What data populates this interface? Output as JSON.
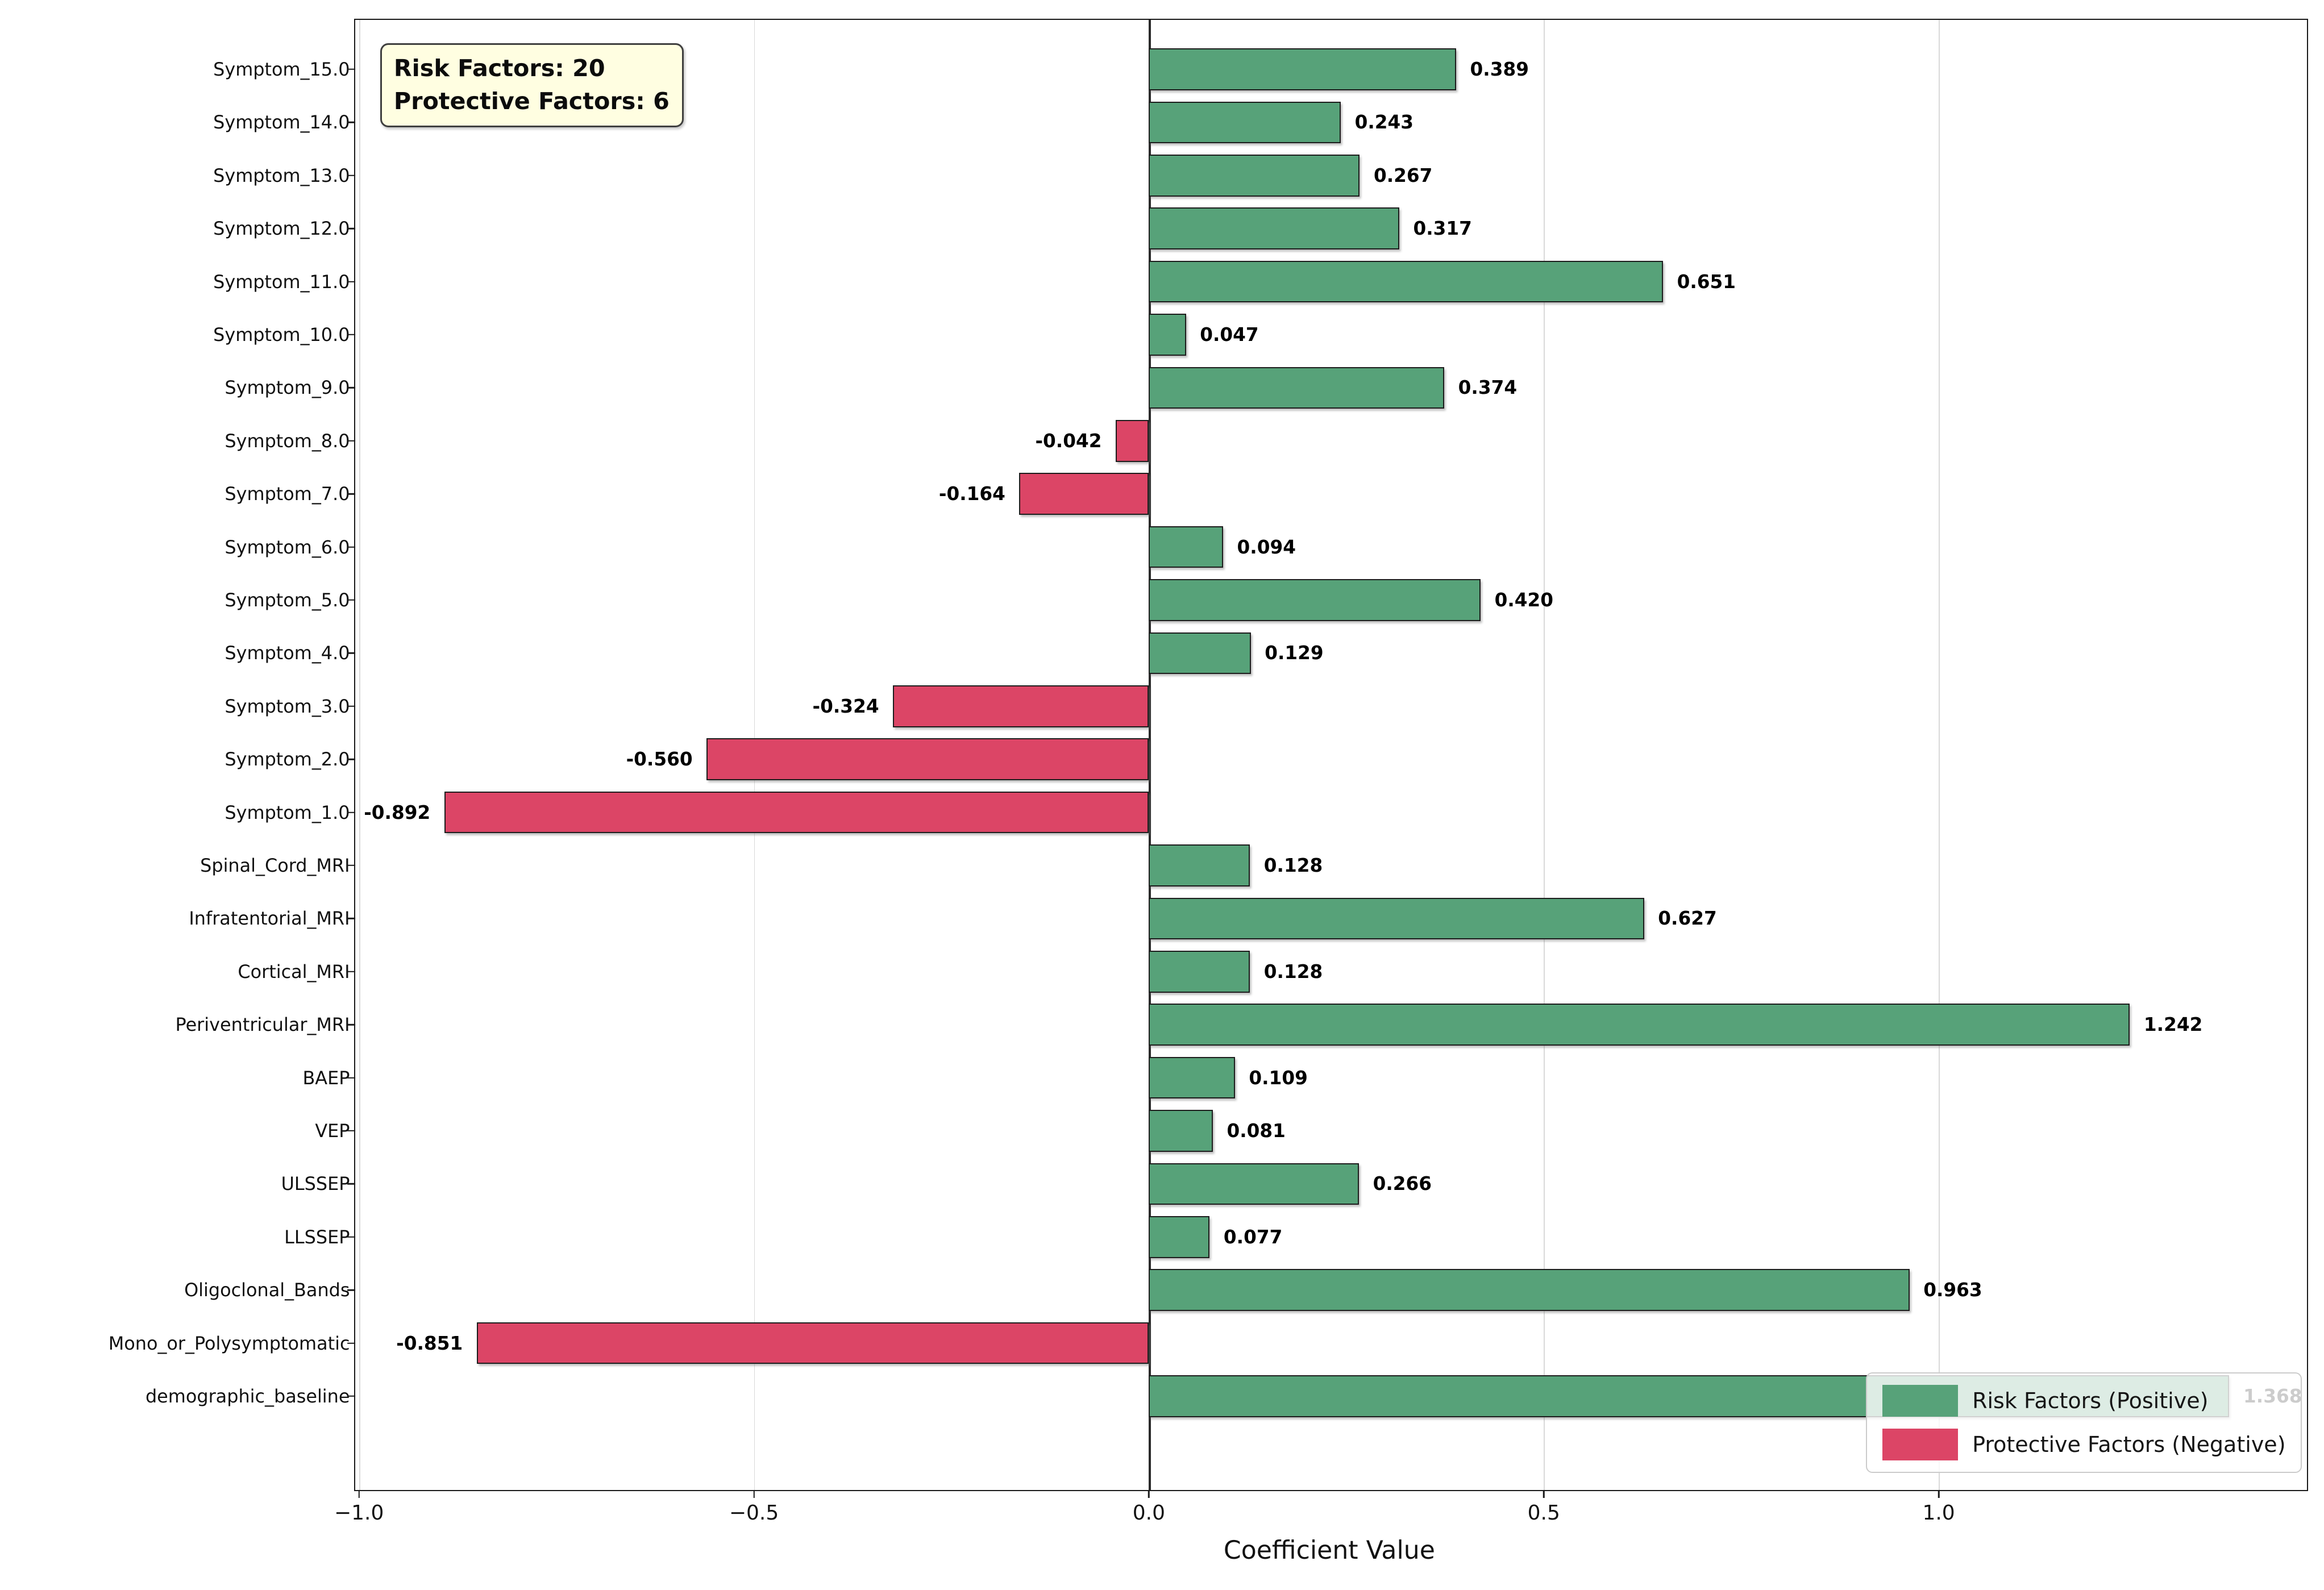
{
  "chart_data": {
    "type": "bar",
    "orientation": "horizontal",
    "title": "",
    "xlabel": "Coefficient Value",
    "ylabel": "",
    "xlim": [
      -1.005,
      1.466
    ],
    "grid": true,
    "legend_position": "lower right",
    "annotation": {
      "line1": "Risk Factors: 20",
      "line2": "Protective Factors: 6"
    },
    "counts": {
      "risk_factors": 20,
      "protective_factors": 6
    },
    "colors": {
      "risk": "#57a279",
      "protective": "#dc4566",
      "bar_edge": "#1d1d1d",
      "annotation_bg": "#fffee1",
      "grid": "#d9d9d9",
      "zero_line": "#2a2a2a"
    },
    "xticks": [
      {
        "value": -1.0,
        "label": "−1.0"
      },
      {
        "value": -0.5,
        "label": "−0.5"
      },
      {
        "value": 0.0,
        "label": "0.0"
      },
      {
        "value": 0.5,
        "label": "0.5"
      },
      {
        "value": 1.0,
        "label": "1.0"
      }
    ],
    "legend": [
      {
        "label": "Risk Factors (Positive)",
        "color": "#57a279"
      },
      {
        "label": "Protective Factors (Negative)",
        "color": "#dc4566"
      }
    ],
    "bars": [
      {
        "label": "Symptom_15.0",
        "value": 0.389,
        "value_label": "0.389",
        "type": "risk"
      },
      {
        "label": "Symptom_14.0",
        "value": 0.243,
        "value_label": "0.243",
        "type": "risk"
      },
      {
        "label": "Symptom_13.0",
        "value": 0.267,
        "value_label": "0.267",
        "type": "risk"
      },
      {
        "label": "Symptom_12.0",
        "value": 0.317,
        "value_label": "0.317",
        "type": "risk"
      },
      {
        "label": "Symptom_11.0",
        "value": 0.651,
        "value_label": "0.651",
        "type": "risk"
      },
      {
        "label": "Symptom_10.0",
        "value": 0.047,
        "value_label": "0.047",
        "type": "risk"
      },
      {
        "label": "Symptom_9.0",
        "value": 0.374,
        "value_label": "0.374",
        "type": "risk"
      },
      {
        "label": "Symptom_8.0",
        "value": -0.042,
        "value_label": "-0.042",
        "type": "protective"
      },
      {
        "label": "Symptom_7.0",
        "value": -0.164,
        "value_label": "-0.164",
        "type": "protective"
      },
      {
        "label": "Symptom_6.0",
        "value": 0.094,
        "value_label": "0.094",
        "type": "risk"
      },
      {
        "label": "Symptom_5.0",
        "value": 0.42,
        "value_label": "0.420",
        "type": "risk"
      },
      {
        "label": "Symptom_4.0",
        "value": 0.129,
        "value_label": "0.129",
        "type": "risk"
      },
      {
        "label": "Symptom_3.0",
        "value": -0.324,
        "value_label": "-0.324",
        "type": "protective"
      },
      {
        "label": "Symptom_2.0",
        "value": -0.56,
        "value_label": "-0.560",
        "type": "protective"
      },
      {
        "label": "Symptom_1.0",
        "value": -0.892,
        "value_label": "-0.892",
        "type": "protective"
      },
      {
        "label": "Spinal_Cord_MRI",
        "value": 0.128,
        "value_label": "0.128",
        "type": "risk"
      },
      {
        "label": "Infratentorial_MRI",
        "value": 0.627,
        "value_label": "0.627",
        "type": "risk"
      },
      {
        "label": "Cortical_MRI",
        "value": 0.128,
        "value_label": "0.128",
        "type": "risk"
      },
      {
        "label": "Periventricular_MRI",
        "value": 1.242,
        "value_label": "1.242",
        "type": "risk"
      },
      {
        "label": "BAEP",
        "value": 0.109,
        "value_label": "0.109",
        "type": "risk"
      },
      {
        "label": "VEP",
        "value": 0.081,
        "value_label": "0.081",
        "type": "risk"
      },
      {
        "label": "ULSSEP",
        "value": 0.266,
        "value_label": "0.266",
        "type": "risk"
      },
      {
        "label": "LLSSEP",
        "value": 0.077,
        "value_label": "0.077",
        "type": "risk"
      },
      {
        "label": "Oligoclonal_Bands",
        "value": 0.963,
        "value_label": "0.963",
        "type": "risk"
      },
      {
        "label": "Mono_or_Polysymptomatic",
        "value": -0.851,
        "value_label": "-0.851",
        "type": "protective"
      },
      {
        "label": "demographic_baseline",
        "value": 1.368,
        "value_label": "1.368",
        "type": "risk"
      }
    ]
  }
}
